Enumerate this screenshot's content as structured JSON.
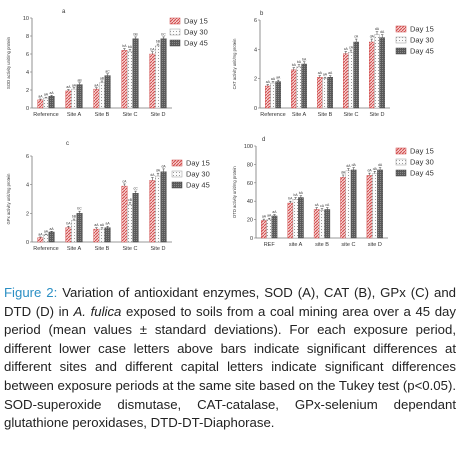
{
  "patterns": {
    "day15": "#e06060",
    "day30": "#f0f0f0",
    "day45": "#666666"
  },
  "chart_data": [
    {
      "type": "bar",
      "panel": "a",
      "ylabel": "SOD activity unit/mg protein",
      "ylim": [
        0,
        10
      ],
      "yticks": [
        "0",
        "2",
        "4",
        "6",
        "8",
        "10"
      ],
      "categories": [
        "Reference",
        "Site A",
        "Site B",
        "Site C",
        "Site D"
      ],
      "legend": [
        "Day 15",
        "Day 30",
        "Day 45"
      ],
      "series": [
        {
          "name": "Day 15",
          "values": [
            0.9,
            1.9,
            2.1,
            6.4,
            6.0
          ]
        },
        {
          "name": "Day 30",
          "values": [
            1.1,
            2.1,
            2.8,
            6.3,
            6.9
          ]
        },
        {
          "name": "Day 45",
          "values": [
            1.3,
            2.6,
            3.6,
            7.7,
            7.7
          ]
        }
      ],
      "errors": [
        [
          0.1,
          0.15,
          0.15,
          0.2,
          0.25
        ],
        [
          0.1,
          0.15,
          0.2,
          0.2,
          0.2
        ],
        [
          0.1,
          0.2,
          0.2,
          0.2,
          0.2
        ]
      ],
      "labels": [
        [
          "aA",
          "aA",
          "aA",
          "bA",
          "bA"
        ],
        [
          "aA",
          "aA",
          "aB",
          "bA",
          "bB"
        ],
        [
          "aA",
          "aB",
          "aC",
          "bB",
          "bC"
        ]
      ]
    },
    {
      "type": "bar",
      "panel": "b",
      "ylabel": "CAT activity unit/mg protein",
      "ylim": [
        0,
        6
      ],
      "yticks": [
        "0",
        "2",
        "4",
        "6"
      ],
      "categories": [
        "Reference",
        "Site A",
        "Site B",
        "Site C",
        "Site D"
      ],
      "legend": [
        "Day 15",
        "Day 30",
        "Day 45"
      ],
      "series": [
        {
          "name": "Day 15",
          "values": [
            1.5,
            2.6,
            2.1,
            3.7,
            4.5
          ]
        },
        {
          "name": "Day 30",
          "values": [
            1.7,
            2.8,
            2.0,
            3.8,
            5.0
          ]
        },
        {
          "name": "Day 45",
          "values": [
            1.8,
            3.0,
            2.1,
            4.5,
            4.8
          ]
        }
      ],
      "errors": [
        [
          0.1,
          0.15,
          0.1,
          0.15,
          0.2
        ],
        [
          0.1,
          0.15,
          0.1,
          0.15,
          0.2
        ],
        [
          0.1,
          0.15,
          0.1,
          0.2,
          0.2
        ]
      ],
      "labels": [
        [
          "aA",
          "bA",
          "aA",
          "cA",
          "dA"
        ],
        [
          "aA",
          "bA",
          "aA",
          "cA",
          "dA"
        ],
        [
          "aA",
          "bA",
          "aA",
          "cA",
          "dA"
        ]
      ]
    },
    {
      "type": "bar",
      "panel": "c",
      "ylabel": "GPx activity unit/mg protein",
      "ylim": [
        0,
        6
      ],
      "yticks": [
        "0",
        "2",
        "4",
        "6"
      ],
      "categories": [
        "Reference",
        "Site A",
        "Site B",
        "Site C",
        "Site D"
      ],
      "legend": [
        "Day 15",
        "Day 30",
        "Day 45"
      ],
      "series": [
        {
          "name": "Day 15",
          "values": [
            0.3,
            1.0,
            0.9,
            3.9,
            4.3
          ]
        },
        {
          "name": "Day 30",
          "values": [
            0.5,
            1.5,
            0.9,
            2.6,
            4.6
          ]
        },
        {
          "name": "Day 45",
          "values": [
            0.7,
            2.0,
            1.0,
            3.4,
            4.9
          ]
        }
      ],
      "errors": [
        [
          0.05,
          0.1,
          0.1,
          0.15,
          0.2
        ],
        [
          0.05,
          0.1,
          0.1,
          0.15,
          0.2
        ],
        [
          0.05,
          0.15,
          0.1,
          0.15,
          0.2
        ]
      ],
      "labels": [
        [
          "aA",
          "bA",
          "aA",
          "cA",
          "dA"
        ],
        [
          "aA",
          "bB",
          "aA",
          "cB",
          "dA"
        ],
        [
          "aA",
          "bC",
          "aA",
          "cC",
          "dA"
        ]
      ]
    },
    {
      "type": "bar",
      "panel": "d",
      "ylabel": "DTD activity unit/mg protein",
      "ylim": [
        0,
        100
      ],
      "yticks": [
        "0",
        "20",
        "40",
        "60",
        "80",
        "100"
      ],
      "categories": [
        "REF",
        "site A",
        "site B",
        "site C",
        "site D"
      ],
      "legend": [
        "Day 15",
        "Day 30",
        "Day 45"
      ],
      "series": [
        {
          "name": "Day 15",
          "values": [
            19,
            38,
            31,
            66,
            68
          ]
        },
        {
          "name": "Day 30",
          "values": [
            20,
            42,
            30,
            73,
            70
          ]
        },
        {
          "name": "Day 45",
          "values": [
            24,
            44,
            31,
            74,
            74
          ]
        }
      ],
      "errors": [
        [
          1.5,
          2,
          2,
          2.5,
          2.5
        ],
        [
          1.5,
          2,
          2,
          2.5,
          2.5
        ],
        [
          1.5,
          2,
          2,
          2.5,
          2.5
        ]
      ],
      "labels": [
        [
          "aA",
          "bA",
          "cA",
          "dA",
          "dA"
        ],
        [
          "aA",
          "bA",
          "cA",
          "dA",
          "dA"
        ],
        [
          "aA",
          "bA",
          "cA",
          "dA",
          "dA"
        ]
      ]
    }
  ],
  "caption": {
    "label": "Figure 2:",
    "text_before_italic": " Variation of antioxidant enzymes, SOD (A), CAT (B), GPx (C) and DTD (D) in ",
    "italic": "A. fulica",
    "text_after_italic": " exposed to soils from a coal mining area over a 45 day period (mean values ± standard deviations). For each exposure period, different lower case letters above bars indicate significant differences at different sites and different capital letters indicate significant differences between exposure periods at the same site based on the Tukey test (p<0.05). SOD-superoxide dismutase, CAT-catalase, GPx-selenium dependant glutathione peroxidases, DTD-DT-Diaphorase."
  }
}
